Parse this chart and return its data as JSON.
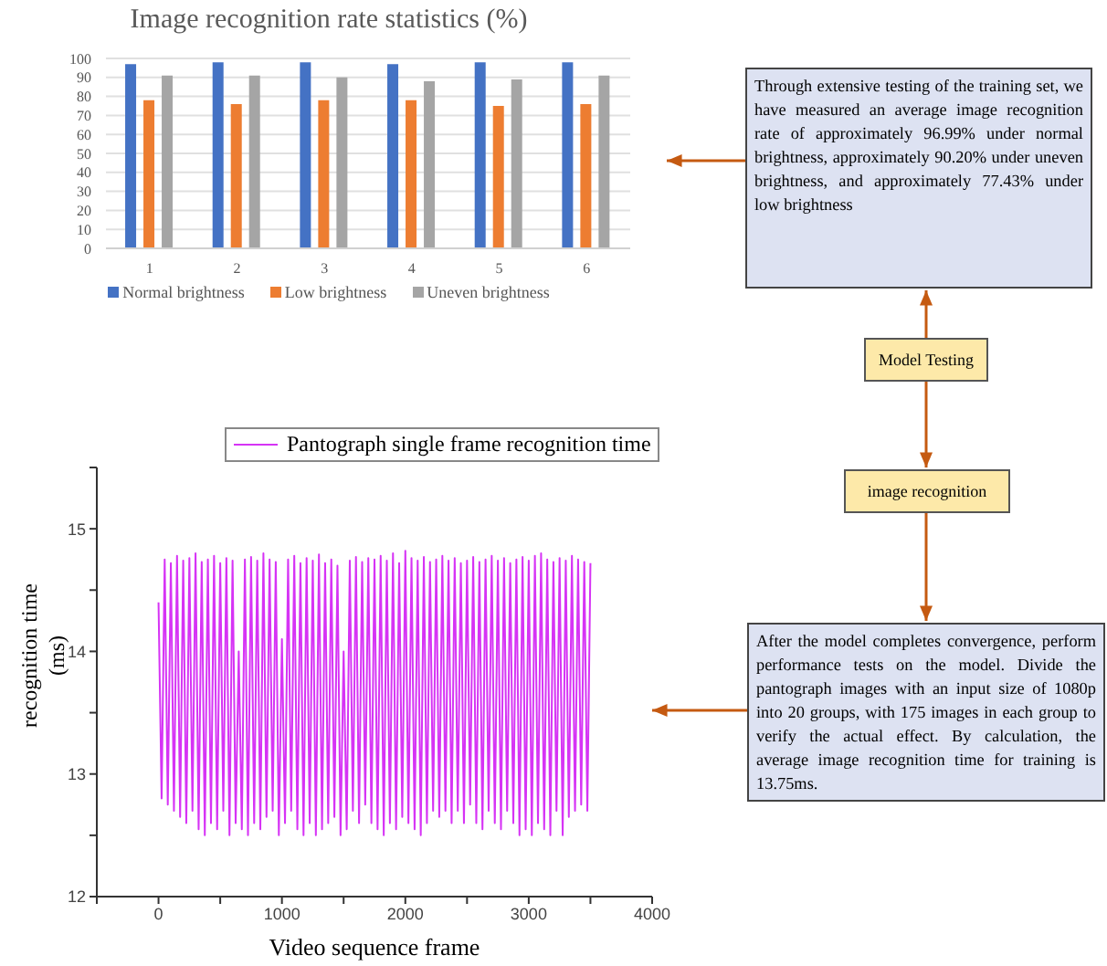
{
  "chart_data": [
    {
      "type": "bar",
      "title": "Image recognition rate statistics (%)",
      "categories": [
        "1",
        "2",
        "3",
        "4",
        "5",
        "6"
      ],
      "series": [
        {
          "name": "Normal brightness",
          "color": "#4472c4",
          "values": [
            97,
            98,
            98,
            97,
            98,
            98
          ]
        },
        {
          "name": "Low brightness",
          "color": "#ed7d31",
          "values": [
            78,
            76,
            78,
            78,
            75,
            76
          ]
        },
        {
          "name": "Uneven brightness",
          "color": "#a5a5a5",
          "values": [
            91,
            91,
            90,
            88,
            89,
            91
          ]
        }
      ],
      "ylim": [
        0,
        100
      ],
      "yticks": [
        0,
        10,
        20,
        30,
        40,
        50,
        60,
        70,
        80,
        90,
        100
      ],
      "grid": "y",
      "legend": "bottom"
    },
    {
      "type": "line",
      "xlabel": "Video sequence frame",
      "ylabel": "recognition time\n(ms)",
      "xlim": [
        -500,
        4000
      ],
      "xticks": [
        {
          "value": -500,
          "label": null
        },
        0,
        {
          "value": 500,
          "label": null
        },
        1000,
        {
          "value": 1500,
          "label": null
        },
        2000,
        {
          "value": 2500,
          "label": null
        },
        3000,
        {
          "value": 3500,
          "label": null
        },
        4000
      ],
      "ylim": [
        12,
        15.5
      ],
      "yticks": [
        12,
        {
          "value": 12.5,
          "label": null
        },
        13,
        {
          "value": 13.5,
          "label": null
        },
        14,
        {
          "value": 14.5,
          "label": null
        },
        15,
        {
          "value": 15.5,
          "label": null
        }
      ],
      "legend": "top",
      "grid": false,
      "x": [
        0,
        25,
        50,
        75,
        100,
        125,
        150,
        175,
        200,
        225,
        250,
        275,
        300,
        325,
        350,
        375,
        400,
        425,
        450,
        475,
        500,
        525,
        550,
        575,
        600,
        625,
        650,
        675,
        700,
        725,
        750,
        775,
        800,
        825,
        850,
        875,
        900,
        925,
        950,
        975,
        1000,
        1025,
        1050,
        1075,
        1100,
        1125,
        1150,
        1175,
        1200,
        1225,
        1250,
        1275,
        1300,
        1325,
        1350,
        1375,
        1400,
        1425,
        1450,
        1475,
        1500,
        1525,
        1550,
        1575,
        1600,
        1625,
        1650,
        1675,
        1700,
        1725,
        1750,
        1775,
        1800,
        1825,
        1850,
        1875,
        1900,
        1925,
        1950,
        1975,
        2000,
        2025,
        2050,
        2075,
        2100,
        2125,
        2150,
        2175,
        2200,
        2225,
        2250,
        2275,
        2300,
        2325,
        2350,
        2375,
        2400,
        2425,
        2450,
        2475,
        2500,
        2525,
        2550,
        2575,
        2600,
        2625,
        2650,
        2675,
        2700,
        2725,
        2750,
        2775,
        2800,
        2825,
        2850,
        2875,
        2900,
        2925,
        2950,
        2975,
        3000,
        3025,
        3050,
        3075,
        3100,
        3125,
        3150,
        3175,
        3200,
        3225,
        3250,
        3275,
        3300,
        3325,
        3350,
        3375,
        3400,
        3425,
        3450,
        3475,
        3500
      ],
      "series": [
        {
          "name": "Pantograph single frame recognition time",
          "color": "#d633f5",
          "values": [
            14.4,
            12.8,
            14.75,
            12.75,
            14.72,
            12.7,
            14.78,
            12.65,
            14.74,
            12.6,
            14.76,
            12.7,
            14.8,
            12.55,
            14.73,
            12.5,
            14.75,
            12.6,
            14.78,
            12.55,
            14.72,
            12.7,
            14.76,
            12.5,
            14.74,
            12.6,
            14.0,
            12.55,
            14.75,
            12.5,
            14.77,
            12.6,
            14.74,
            12.55,
            14.8,
            12.65,
            14.75,
            12.7,
            14.73,
            12.5,
            14.1,
            12.6,
            14.75,
            12.7,
            14.78,
            12.55,
            14.72,
            12.5,
            14.76,
            12.6,
            14.74,
            12.5,
            14.79,
            12.55,
            14.72,
            12.6,
            14.75,
            12.65,
            14.7,
            12.5,
            14.0,
            12.55,
            14.74,
            12.7,
            14.77,
            12.6,
            14.73,
            12.75,
            14.76,
            12.6,
            14.75,
            12.55,
            14.78,
            12.5,
            14.74,
            12.6,
            14.8,
            12.55,
            14.72,
            12.65,
            14.82,
            12.6,
            14.76,
            12.55,
            14.74,
            12.5,
            14.77,
            12.6,
            14.73,
            12.7,
            14.75,
            12.65,
            14.78,
            12.7,
            14.74,
            12.6,
            14.76,
            12.7,
            14.72,
            12.6,
            14.74,
            12.75,
            14.77,
            12.6,
            14.73,
            12.55,
            14.75,
            12.7,
            14.78,
            12.6,
            14.74,
            12.55,
            14.76,
            12.7,
            14.72,
            12.6,
            14.75,
            12.5,
            14.77,
            12.55,
            14.74,
            12.5,
            14.78,
            12.6,
            14.8,
            12.55,
            14.75,
            12.5,
            14.73,
            12.7,
            14.76,
            12.5,
            14.74,
            12.65,
            14.78,
            12.7,
            14.75,
            12.75,
            14.73,
            12.7,
            14.72
          ]
        }
      ]
    },
    {
      "type": "other",
      "annotations": [
        "Through extensive testing of the training set, we have measured an average image recognition rate of approximately 96.99% under normal brightness, approximately 90.20% under uneven brightness, and approximately 77.43% under low brightness",
        "Model Testing",
        "image recognition",
        "After the model completes convergence, perform performance tests on the model. Divide the pantograph images with an input size of 1080p into 20 groups, with 175 images in each group to verify the actual effect. By calculation, the average image recognition time for training is 13.75ms."
      ]
    }
  ]
}
